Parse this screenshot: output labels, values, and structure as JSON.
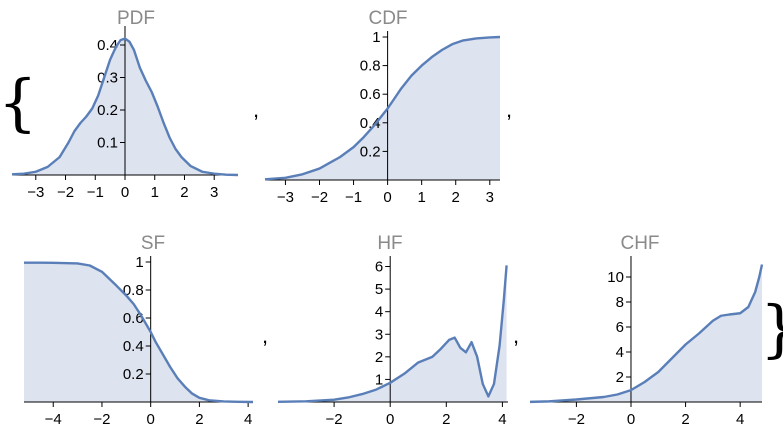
{
  "colors": {
    "curve": "#5a7fb8",
    "fill": "#dde3ef",
    "axis": "#000000",
    "title": "#8a8a8a"
  },
  "punctuation": {
    "open_brace": "{",
    "close_brace": "}",
    "separator": ","
  },
  "chart_data": [
    {
      "type": "area",
      "title": "PDF",
      "xlim": [
        -3.8,
        3.8
      ],
      "ylim": [
        0,
        0.44
      ],
      "xticks": [
        -3,
        -2,
        -1,
        0,
        1,
        2,
        3
      ],
      "yticks": [
        0.1,
        0.2,
        0.3,
        0.4
      ],
      "x": [
        -3.8,
        -3.4,
        -3.0,
        -2.6,
        -2.2,
        -1.9,
        -1.7,
        -1.5,
        -1.3,
        -1.1,
        -0.9,
        -0.7,
        -0.5,
        -0.3,
        -0.15,
        0.0,
        0.15,
        0.3,
        0.5,
        0.7,
        0.9,
        1.1,
        1.3,
        1.5,
        1.7,
        1.9,
        2.2,
        2.6,
        3.0,
        3.4,
        3.8
      ],
      "y": [
        0.002,
        0.004,
        0.01,
        0.025,
        0.055,
        0.1,
        0.135,
        0.16,
        0.18,
        0.205,
        0.245,
        0.3,
        0.355,
        0.395,
        0.415,
        0.42,
        0.41,
        0.385,
        0.33,
        0.29,
        0.255,
        0.21,
        0.16,
        0.115,
        0.08,
        0.055,
        0.028,
        0.01,
        0.004,
        0.001,
        0.0
      ]
    },
    {
      "type": "area",
      "title": "CDF",
      "xlim": [
        -3.6,
        3.3
      ],
      "ylim": [
        0,
        1.0
      ],
      "xticks": [
        -3,
        -2,
        -1,
        0,
        1,
        2,
        3
      ],
      "yticks": [
        0.2,
        0.4,
        0.6,
        0.8,
        1.0
      ],
      "x": [
        -3.6,
        -3.0,
        -2.5,
        -2.0,
        -1.7,
        -1.4,
        -1.0,
        -0.7,
        -0.4,
        -0.2,
        0.0,
        0.2,
        0.4,
        0.7,
        1.0,
        1.3,
        1.6,
        1.9,
        2.2,
        2.6,
        3.0,
        3.3
      ],
      "y": [
        0.005,
        0.015,
        0.04,
        0.08,
        0.12,
        0.16,
        0.23,
        0.3,
        0.38,
        0.44,
        0.5,
        0.57,
        0.64,
        0.73,
        0.8,
        0.86,
        0.91,
        0.95,
        0.975,
        0.99,
        0.997,
        1.0
      ]
    },
    {
      "type": "area",
      "title": "SF",
      "xlim": [
        -5.2,
        4.2
      ],
      "ylim": [
        0,
        1.0
      ],
      "xticks": [
        -4,
        -2,
        0,
        2,
        4
      ],
      "yticks": [
        0.2,
        0.4,
        0.6,
        0.8,
        1.0
      ],
      "x": [
        -5.2,
        -4.5,
        -4.0,
        -3.0,
        -2.5,
        -2.0,
        -1.7,
        -1.4,
        -1.0,
        -0.7,
        -0.4,
        -0.2,
        0.0,
        0.2,
        0.5,
        0.8,
        1.1,
        1.4,
        1.7,
        2.0,
        2.4,
        3.0,
        3.6,
        4.2
      ],
      "y": [
        0.995,
        0.995,
        0.994,
        0.99,
        0.975,
        0.93,
        0.88,
        0.83,
        0.76,
        0.7,
        0.62,
        0.56,
        0.5,
        0.43,
        0.34,
        0.25,
        0.17,
        0.11,
        0.06,
        0.03,
        0.012,
        0.004,
        0.001,
        0.0
      ]
    },
    {
      "type": "area",
      "title": "HF",
      "xlim": [
        -4.0,
        4.2
      ],
      "ylim": [
        0,
        6.2
      ],
      "xticks": [
        -2,
        0,
        2,
        4
      ],
      "yticks": [
        1,
        2,
        3,
        4,
        5,
        6
      ],
      "x": [
        -4.0,
        -3.0,
        -2.0,
        -1.5,
        -1.0,
        -0.5,
        0.0,
        0.5,
        1.0,
        1.5,
        1.8,
        2.1,
        2.3,
        2.5,
        2.7,
        2.9,
        3.1,
        3.3,
        3.5,
        3.7,
        3.9,
        4.05,
        4.15
      ],
      "y": [
        0.01,
        0.03,
        0.1,
        0.2,
        0.35,
        0.55,
        0.85,
        1.25,
        1.75,
        2.0,
        2.35,
        2.75,
        2.85,
        2.4,
        2.2,
        2.65,
        2.0,
        0.8,
        0.25,
        0.8,
        2.5,
        4.5,
        6.05
      ]
    },
    {
      "type": "area",
      "title": "CHF",
      "xlim": [
        -3.7,
        4.8
      ],
      "ylim": [
        0,
        11.2
      ],
      "xticks": [
        -2,
        0,
        2,
        4
      ],
      "yticks": [
        2,
        4,
        6,
        8,
        10
      ],
      "x": [
        -3.7,
        -3.0,
        -2.0,
        -1.0,
        -0.5,
        0.0,
        0.5,
        1.0,
        1.5,
        2.0,
        2.5,
        3.0,
        3.3,
        3.6,
        4.0,
        4.3,
        4.55,
        4.7,
        4.8
      ],
      "y": [
        0.01,
        0.05,
        0.2,
        0.4,
        0.6,
        0.95,
        1.6,
        2.4,
        3.5,
        4.6,
        5.5,
        6.5,
        6.9,
        7.0,
        7.1,
        7.6,
        8.8,
        10.0,
        11.0
      ]
    }
  ]
}
